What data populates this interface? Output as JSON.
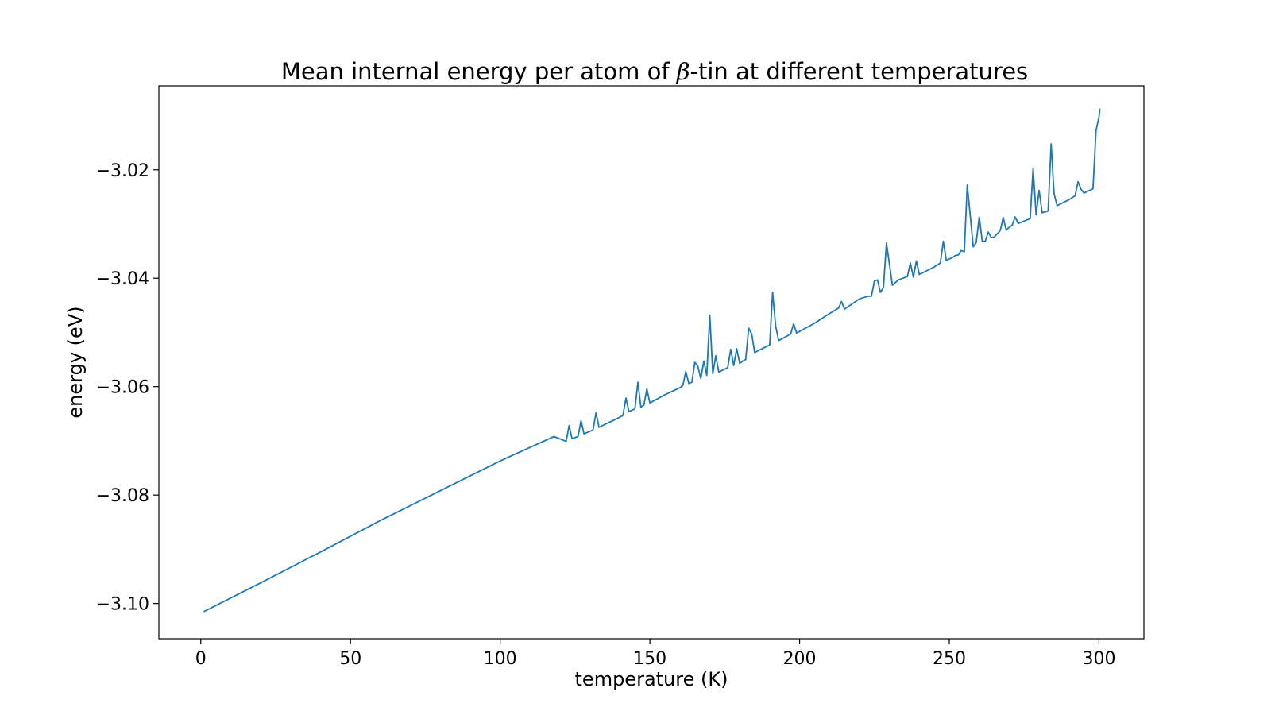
{
  "chart_data": {
    "type": "line",
    "title_pre": "Mean internal energy per atom of ",
    "title_symbol": "β",
    "title_post": "-tin at different temperatures",
    "xlabel": "temperature (K)",
    "ylabel": "energy (eV)",
    "xlim": [
      -14,
      315
    ],
    "ylim": [
      -3.1065,
      -3.0045
    ],
    "xticks": [
      0,
      50,
      100,
      150,
      200,
      250,
      300
    ],
    "xtick_labels": [
      "0",
      "50",
      "100",
      "150",
      "200",
      "250",
      "300"
    ],
    "yticks": [
      -3.02,
      -3.04,
      -3.06,
      -3.08,
      -3.1
    ],
    "ytick_labels": [
      "−3.02",
      "−3.04",
      "−3.06",
      "−3.08",
      "−3.10"
    ],
    "grid": false,
    "line_color": "#1f77b4",
    "series": [
      {
        "x": [
          1,
          20,
          40,
          60,
          80,
          100,
          110,
          118,
          122,
          123,
          124,
          126,
          127,
          128,
          131,
          132,
          133,
          136,
          139,
          141,
          142,
          143,
          145,
          146,
          147,
          148,
          149,
          150,
          155,
          160,
          161,
          162,
          163,
          164,
          165,
          166,
          167,
          168,
          169,
          170,
          171,
          172,
          173,
          176,
          177,
          178,
          179,
          180,
          181,
          182,
          183,
          184,
          185,
          190,
          191,
          192,
          193,
          197,
          198,
          199,
          205,
          210,
          213,
          214,
          215,
          220,
          223,
          224,
          225,
          226,
          227,
          228,
          229,
          231,
          233,
          236,
          237,
          238,
          239,
          240,
          245,
          247,
          248,
          249,
          251,
          252,
          253,
          254,
          255,
          256,
          258,
          259,
          260,
          261,
          262,
          263,
          264,
          265,
          266,
          267,
          268,
          269,
          270,
          271,
          272,
          273,
          277,
          278,
          279,
          280,
          281,
          283,
          284,
          285,
          286,
          290,
          292,
          293,
          294,
          295,
          298,
          299,
          300,
          300.3
        ],
        "y": [
          -3.1015,
          -3.0962,
          -3.0905,
          -3.0847,
          -3.0792,
          -3.0737,
          -3.0712,
          -3.0692,
          -3.0701,
          -3.0672,
          -3.0696,
          -3.0692,
          -3.0663,
          -3.0687,
          -3.068,
          -3.0648,
          -3.0675,
          -3.0667,
          -3.0659,
          -3.0653,
          -3.0621,
          -3.0646,
          -3.0641,
          -3.0592,
          -3.0638,
          -3.0634,
          -3.0604,
          -3.063,
          -3.0615,
          -3.0602,
          -3.0598,
          -3.0572,
          -3.0594,
          -3.0592,
          -3.0555,
          -3.0562,
          -3.0585,
          -3.0553,
          -3.0579,
          -3.0468,
          -3.0576,
          -3.0543,
          -3.0573,
          -3.0565,
          -3.0531,
          -3.0561,
          -3.053,
          -3.0557,
          -3.0553,
          -3.055,
          -3.0492,
          -3.0503,
          -3.0537,
          -3.0523,
          -3.0426,
          -3.0488,
          -3.0515,
          -3.0503,
          -3.0484,
          -3.0501,
          -3.0483,
          -3.0465,
          -3.0455,
          -3.0443,
          -3.0457,
          -3.0438,
          -3.0433,
          -3.0433,
          -3.0405,
          -3.0403,
          -3.0426,
          -3.0417,
          -3.0335,
          -3.0413,
          -3.0403,
          -3.0397,
          -3.0372,
          -3.0398,
          -3.0368,
          -3.0393,
          -3.0379,
          -3.0372,
          -3.0332,
          -3.0367,
          -3.0362,
          -3.0358,
          -3.0357,
          -3.0349,
          -3.0351,
          -3.0228,
          -3.0342,
          -3.0334,
          -3.0287,
          -3.0332,
          -3.0332,
          -3.0315,
          -3.0325,
          -3.0324,
          -3.0318,
          -3.0312,
          -3.0288,
          -3.0311,
          -3.0306,
          -3.0302,
          -3.0287,
          -3.0299,
          -3.029,
          -3.0197,
          -3.0283,
          -3.0238,
          -3.0279,
          -3.0276,
          -3.0152,
          -3.0244,
          -3.0266,
          -3.0255,
          -3.0248,
          -3.0222,
          -3.0236,
          -3.0243,
          -3.0235,
          -3.0128,
          -3.0102,
          -3.0087
        ]
      }
    ]
  }
}
